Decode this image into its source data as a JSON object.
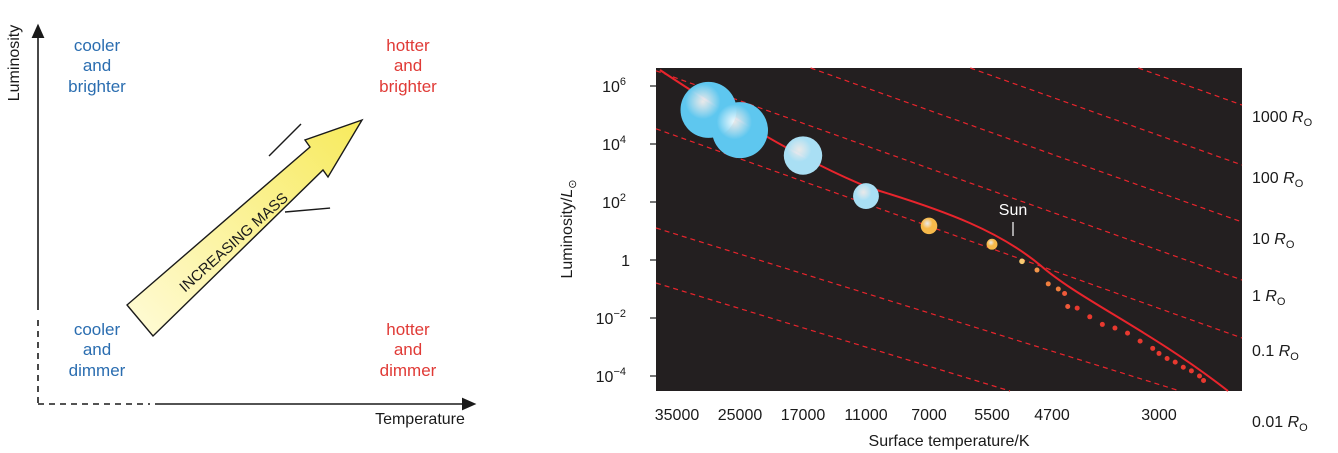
{
  "left_diagram": {
    "y_axis_label": "Luminosity",
    "x_axis_label": "Temperature",
    "arrow_label": "INCREASING MASS",
    "corners": {
      "top_left": [
        "cooler",
        "and",
        "brighter"
      ],
      "top_right": [
        "hotter",
        "and",
        "brighter"
      ],
      "bottom_left": [
        "cooler",
        "and",
        "dimmer"
      ],
      "bottom_right": [
        "hotter",
        "and",
        "dimmer"
      ]
    },
    "colors": {
      "cool": "#2a6db0",
      "hot": "#e03a36",
      "arrow_fill": "#fbf5a6"
    }
  },
  "chart_data": {
    "type": "scatter",
    "xlabel": "Surface temperature/K",
    "ylabel_main": "Luminosity/",
    "ylabel_symbol": "L",
    "x_scale": "reversed (hot on left)",
    "y_scale": "log",
    "x_tick_labels": [
      "35000",
      "25000",
      "17000",
      "11000",
      "7000",
      "5500",
      "4700",
      "3000"
    ],
    "y_ticks": [
      {
        "base": "10",
        "exp": "6",
        "value": 1000000
      },
      {
        "base": "10",
        "exp": "4",
        "value": 10000
      },
      {
        "base": "10",
        "exp": "2",
        "value": 100
      },
      {
        "base": "1",
        "exp": "",
        "value": 1
      },
      {
        "base": "10",
        "exp": "−2",
        "value": 0.01
      },
      {
        "base": "10",
        "exp": "−4",
        "value": 0.0001
      }
    ],
    "radius_lines": [
      {
        "num": "1000",
        "unit": "R",
        "sub": "O"
      },
      {
        "num": "100",
        "unit": "R",
        "sub": "O"
      },
      {
        "num": "10",
        "unit": "R",
        "sub": "O"
      },
      {
        "num": "1",
        "unit": "R",
        "sub": "O"
      },
      {
        "num": "0.1",
        "unit": "R",
        "sub": "O"
      },
      {
        "num": "0.01",
        "unit": "R",
        "sub": "O"
      }
    ],
    "annotation": "Sun",
    "stars": [
      {
        "t": 30000,
        "l": 150000,
        "color": "#5ec7ef"
      },
      {
        "t": 25000,
        "l": 30000,
        "color": "#5ec7ef"
      },
      {
        "t": 17000,
        "l": 4000,
        "color": "#a9dff4"
      },
      {
        "t": 11000,
        "l": 160,
        "color": "#a9dff4"
      },
      {
        "t": 7000,
        "l": 15,
        "color": "#f7b94a"
      },
      {
        "t": 5500,
        "l": 3.5,
        "color": "#f7b94a"
      },
      {
        "t": 5100,
        "l": 0.9,
        "color": "#f8c971"
      },
      {
        "t": 4900,
        "l": 0.45,
        "color": "#f3954a"
      },
      {
        "t": 4750,
        "l": 0.15,
        "color": "#f07f3e"
      },
      {
        "t": 4600,
        "l": 0.1,
        "color": "#f07f3e"
      },
      {
        "t": 4500,
        "l": 0.07,
        "color": "#ef5a3a"
      },
      {
        "t": 4450,
        "l": 0.025,
        "color": "#ef5a3a"
      },
      {
        "t": 4300,
        "l": 0.022,
        "color": "#e8392f"
      },
      {
        "t": 4100,
        "l": 0.011,
        "color": "#e8392f"
      },
      {
        "t": 3900,
        "l": 0.006,
        "color": "#e8392f"
      },
      {
        "t": 3700,
        "l": 0.0045,
        "color": "#e8392f"
      },
      {
        "t": 3500,
        "l": 0.003,
        "color": "#e8392f"
      },
      {
        "t": 3300,
        "l": 0.0016,
        "color": "#e8392f"
      },
      {
        "t": 3100,
        "l": 0.0009,
        "color": "#e8392f"
      },
      {
        "t": 3000,
        "l": 0.0006,
        "color": "#e8392f"
      },
      {
        "t": 2900,
        "l": 0.0004,
        "color": "#e8392f"
      },
      {
        "t": 2800,
        "l": 0.0003,
        "color": "#e8392f"
      },
      {
        "t": 2700,
        "l": 0.0002,
        "color": "#e8392f"
      },
      {
        "t": 2600,
        "l": 0.00015,
        "color": "#e8392f"
      },
      {
        "t": 2500,
        "l": 0.0001,
        "color": "#e8392f"
      },
      {
        "t": 2450,
        "l": 7e-05,
        "color": "#e8392f"
      }
    ],
    "colors": {
      "background": "#231f20",
      "main_sequence": "#e8242c",
      "radius_lines": "#e8242c"
    }
  }
}
